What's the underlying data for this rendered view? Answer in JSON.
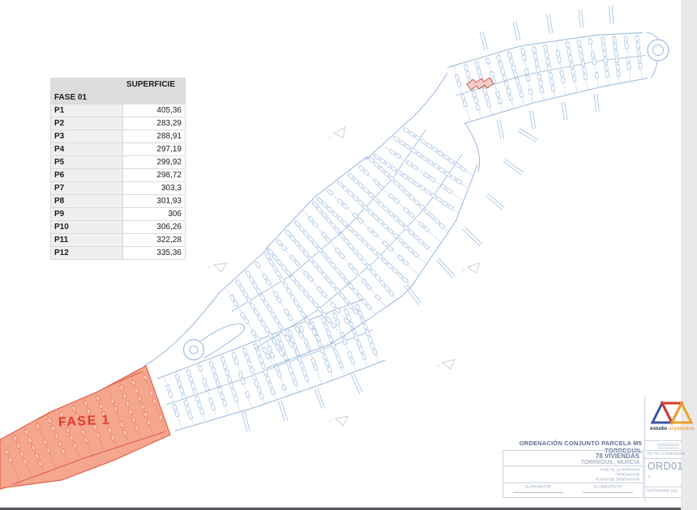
{
  "table": {
    "header_col2": "SUPERFICIE",
    "group_label": "FASE 01",
    "rows": [
      {
        "label": "P1",
        "value": "405,36"
      },
      {
        "label": "P2",
        "value": "283,29"
      },
      {
        "label": "P3",
        "value": "288,91"
      },
      {
        "label": "P4",
        "value": "297,19"
      },
      {
        "label": "P5",
        "value": "299,92"
      },
      {
        "label": "P6",
        "value": "298,72"
      },
      {
        "label": "P7",
        "value": "303,3"
      },
      {
        "label": "P8",
        "value": "301,93"
      },
      {
        "label": "P9",
        "value": "306"
      },
      {
        "label": "P10",
        "value": "306,26"
      },
      {
        "label": "P11",
        "value": "322,28"
      },
      {
        "label": "P12",
        "value": "335,36"
      }
    ]
  },
  "plan": {
    "fase1_label": "FASE 1",
    "colors": {
      "line": "#9fbddf",
      "soft": "#c9daee",
      "house": "#9bb9de",
      "red_fill": "#f5a78e",
      "red_line": "#e2604a",
      "red_soft": "#ea8a70",
      "red_house": "#e1785c",
      "red_house_fill": "#f9c9b7",
      "marker": "#c6cad3",
      "red_detail": "#c94b40"
    }
  },
  "title_block": {
    "title": "ORDENACIÓN CONJUNTO PARCELA M5 TORREGUIL",
    "project": "78 VIVIENDAS",
    "location": "TORREGUIL, MURCIA",
    "sub_line1": "FASE 01, 12 VIVIENDAS",
    "sub_line2": "ORDENACIÓN",
    "sub_line3": "PLANTA DE ORDENACIÓN",
    "promoter_label": "EL PROMOTOR",
    "architect_label": "EL ARQUITECTO",
    "ref_label": "Ref. Ref. a Urbanización",
    "drawing_code": "ORD01",
    "scale_label": "1:",
    "date_label": "SEPTIEMBRE 2021",
    "logo_word1": "estudio",
    "logo_word2": "arquitectura"
  }
}
